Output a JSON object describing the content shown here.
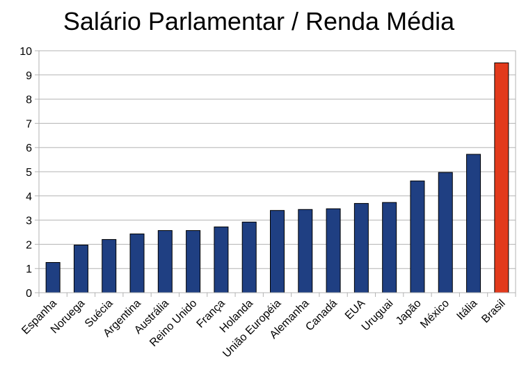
{
  "chart_data": {
    "type": "bar",
    "title": "Salário Parlamentar / Renda Média",
    "xlabel": "",
    "ylabel": "",
    "ylim": [
      0,
      10
    ],
    "yticks": [
      "0",
      "1",
      "2",
      "3",
      "4",
      "5",
      "6",
      "7",
      "8",
      "9",
      "10"
    ],
    "grid": true,
    "legend": "none",
    "categories": [
      "Espanha",
      "Noruega",
      "Suécia",
      "Argentina",
      "Austrália",
      "Reino Unido",
      "França",
      "Holanda",
      "União Européia",
      "Alemanha",
      "Canadá",
      "EUA",
      "Uruguai",
      "Japão",
      "México",
      "Itália",
      "Brasil"
    ],
    "values": [
      1.25,
      1.97,
      2.2,
      2.43,
      2.57,
      2.57,
      2.72,
      2.92,
      3.4,
      3.44,
      3.47,
      3.69,
      3.73,
      4.62,
      4.97,
      5.72,
      9.5
    ],
    "colors": {
      "default_bar": "#1f3f82",
      "highlight_bar": "#e23a1c",
      "highlight_category": "Brasil",
      "grid": "#b3b3b3",
      "axis": "#b3b3b3"
    }
  }
}
